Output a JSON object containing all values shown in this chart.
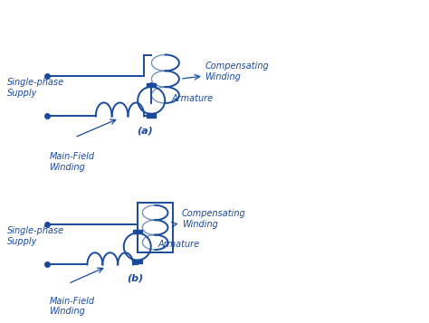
{
  "color": "#1a4a9c",
  "bg_color": "#ffffff",
  "fig_width": 4.74,
  "fig_height": 3.57,
  "dpi": 100,
  "label_a": "(a)",
  "label_b": "(b)",
  "text_compensating": "Compensating\nWinding",
  "text_armature": "Armature",
  "text_supply": "Single-phase\nSupply",
  "text_main_field": "Main-Field\nWinding",
  "font_size": 7.0
}
